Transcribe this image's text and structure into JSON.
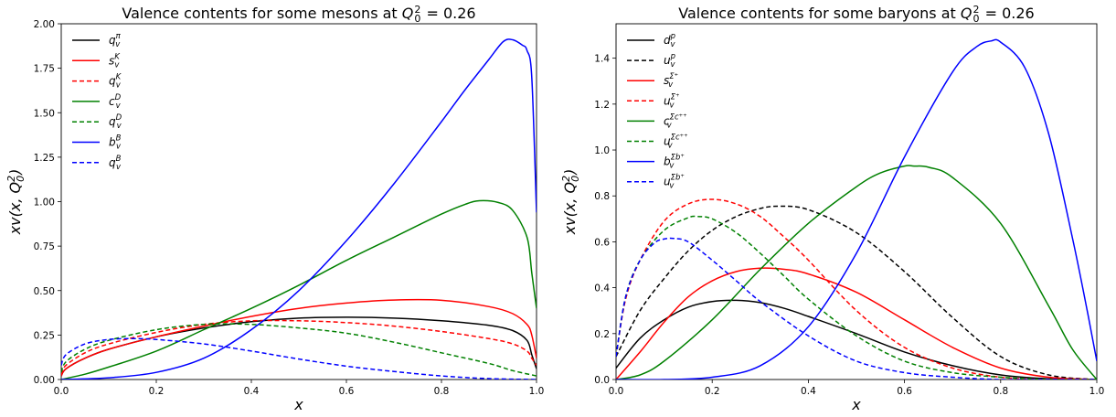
{
  "chart_data": [
    {
      "type": "line",
      "title_prefix": "Valence contents for some mesons at ",
      "title_sym": "Q",
      "title_sub": "0",
      "title_sup": "2",
      "title_suffix": " = 0.26",
      "xlabel": "x",
      "ylabel": {
        "base": "xv(x, Q",
        "sub": "0",
        "sup": "2",
        "close": ")"
      },
      "xlim": [
        0.0,
        1.0
      ],
      "ylim": [
        0.0,
        2.0
      ],
      "xticks": [
        0.0,
        0.2,
        0.4,
        0.6,
        0.8,
        1.0
      ],
      "xtick_labels": [
        "0.0",
        "0.2",
        "0.4",
        "0.6",
        "0.8",
        "1.0"
      ],
      "yticks": [
        0,
        0.25,
        0.5,
        0.75,
        1.0,
        1.25,
        1.5,
        1.75,
        2.0
      ],
      "ytick_labels": [
        "0.00",
        "0.25",
        "0.50",
        "0.75",
        "1.00",
        "1.25",
        "1.50",
        "1.75",
        "2.00"
      ],
      "legend_position": "top-left",
      "series": [
        {
          "name": "q_v^π",
          "base": "q",
          "sup": "π",
          "color": "#000000",
          "dash": "solid",
          "x": [
            0.0,
            0.01,
            0.05,
            0.1,
            0.2,
            0.3,
            0.4,
            0.5,
            0.6,
            0.7,
            0.8,
            0.9,
            0.95,
            0.98,
            0.99,
            1.0
          ],
          "y": [
            0.02,
            0.06,
            0.12,
            0.17,
            0.24,
            0.29,
            0.325,
            0.345,
            0.35,
            0.345,
            0.33,
            0.305,
            0.275,
            0.22,
            0.14,
            0.06
          ]
        },
        {
          "name": "s_v^K",
          "base": "s",
          "sup": "K",
          "color": "#ff0000",
          "dash": "solid",
          "x": [
            0.0,
            0.01,
            0.05,
            0.1,
            0.2,
            0.3,
            0.4,
            0.5,
            0.6,
            0.7,
            0.8,
            0.9,
            0.95,
            0.98,
            0.99,
            1.0
          ],
          "y": [
            0.02,
            0.06,
            0.12,
            0.17,
            0.24,
            0.3,
            0.355,
            0.4,
            0.43,
            0.447,
            0.445,
            0.41,
            0.37,
            0.31,
            0.25,
            0.12
          ]
        },
        {
          "name": "q_v^K",
          "base": "q",
          "sup": "K",
          "color": "#ff0000",
          "dash": "dashed",
          "x": [
            0.0,
            0.01,
            0.05,
            0.1,
            0.2,
            0.3,
            0.4,
            0.5,
            0.6,
            0.7,
            0.8,
            0.9,
            0.95,
            0.98,
            0.99,
            1.0
          ],
          "y": [
            0.03,
            0.08,
            0.15,
            0.2,
            0.265,
            0.31,
            0.33,
            0.33,
            0.32,
            0.3,
            0.27,
            0.23,
            0.2,
            0.16,
            0.12,
            0.08
          ]
        },
        {
          "name": "c_v^D",
          "base": "c",
          "sup": "D",
          "color": "#008000",
          "dash": "solid",
          "x": [
            0.0,
            0.05,
            0.1,
            0.2,
            0.3,
            0.4,
            0.5,
            0.6,
            0.7,
            0.8,
            0.85,
            0.88,
            0.92,
            0.95,
            0.98,
            0.99,
            1.0
          ],
          "y": [
            0.0,
            0.03,
            0.07,
            0.16,
            0.28,
            0.4,
            0.53,
            0.67,
            0.8,
            0.93,
            0.985,
            1.005,
            0.995,
            0.95,
            0.8,
            0.6,
            0.4
          ]
        },
        {
          "name": "q_v^D",
          "base": "q",
          "sup": "D",
          "color": "#008000",
          "dash": "dashed",
          "x": [
            0.0,
            0.01,
            0.05,
            0.1,
            0.2,
            0.3,
            0.4,
            0.5,
            0.6,
            0.7,
            0.8,
            0.9,
            0.95,
            1.0
          ],
          "y": [
            0.04,
            0.1,
            0.17,
            0.22,
            0.28,
            0.31,
            0.31,
            0.29,
            0.26,
            0.21,
            0.15,
            0.09,
            0.05,
            0.02
          ]
        },
        {
          "name": "b_v^B",
          "base": "b",
          "sup": "B",
          "color": "#0000ff",
          "dash": "solid",
          "x": [
            0.0,
            0.1,
            0.2,
            0.3,
            0.4,
            0.5,
            0.6,
            0.7,
            0.8,
            0.85,
            0.9,
            0.93,
            0.95,
            0.97,
            0.98,
            0.99,
            1.0
          ],
          "y": [
            0.0,
            0.01,
            0.04,
            0.12,
            0.28,
            0.5,
            0.78,
            1.1,
            1.45,
            1.63,
            1.8,
            1.9,
            1.91,
            1.88,
            1.85,
            1.7,
            0.94
          ]
        },
        {
          "name": "q_v^B",
          "base": "q",
          "sup": "B",
          "color": "#0000ff",
          "dash": "dashed",
          "x": [
            0.0,
            0.01,
            0.05,
            0.1,
            0.15,
            0.2,
            0.3,
            0.4,
            0.5,
            0.6,
            0.7,
            0.8,
            0.9,
            1.0
          ],
          "y": [
            0.08,
            0.14,
            0.2,
            0.225,
            0.23,
            0.225,
            0.2,
            0.16,
            0.115,
            0.075,
            0.045,
            0.02,
            0.005,
            0.0
          ]
        }
      ]
    },
    {
      "type": "line",
      "title_prefix": "Valence contents for some baryons at ",
      "title_sym": "Q",
      "title_sub": "0",
      "title_sup": "2",
      "title_suffix": " = 0.26",
      "xlabel": "x",
      "ylabel": {
        "base": "xv(x, Q",
        "sub": "0",
        "sup": "2",
        "close": ")"
      },
      "xlim": [
        0.0,
        1.0
      ],
      "ylim": [
        0.0,
        1.55
      ],
      "xticks": [
        0.0,
        0.2,
        0.4,
        0.6,
        0.8,
        1.0
      ],
      "xtick_labels": [
        "0.0",
        "0.2",
        "0.4",
        "0.6",
        "0.8",
        "1.0"
      ],
      "yticks": [
        0.0,
        0.2,
        0.4,
        0.6,
        0.8,
        1.0,
        1.2,
        1.4
      ],
      "ytick_labels": [
        "0.0",
        "0.2",
        "0.4",
        "0.6",
        "0.8",
        "1.0",
        "1.2",
        "1.4"
      ],
      "legend_position": "top-left",
      "series": [
        {
          "name": "d_v^p",
          "base": "d",
          "sup": "p",
          "color": "#000000",
          "dash": "solid",
          "x": [
            0.0,
            0.05,
            0.1,
            0.15,
            0.2,
            0.25,
            0.3,
            0.35,
            0.4,
            0.5,
            0.6,
            0.7,
            0.8,
            0.9,
            1.0
          ],
          "y": [
            0.05,
            0.18,
            0.26,
            0.315,
            0.34,
            0.345,
            0.335,
            0.31,
            0.275,
            0.2,
            0.12,
            0.06,
            0.02,
            0.003,
            0.0
          ]
        },
        {
          "name": "u_v^p",
          "base": "u",
          "sup": "p",
          "color": "#000000",
          "dash": "dashed",
          "x": [
            0.0,
            0.05,
            0.1,
            0.15,
            0.2,
            0.25,
            0.3,
            0.34,
            0.4,
            0.5,
            0.6,
            0.7,
            0.8,
            0.9,
            1.0
          ],
          "y": [
            0.1,
            0.3,
            0.44,
            0.56,
            0.65,
            0.71,
            0.745,
            0.755,
            0.74,
            0.64,
            0.47,
            0.27,
            0.1,
            0.02,
            0.0
          ]
        },
        {
          "name": "s_v^{Σ+}",
          "base": "s",
          "sup": "Σ⁺",
          "color": "#ff0000",
          "dash": "solid",
          "x": [
            0.0,
            0.05,
            0.1,
            0.15,
            0.2,
            0.25,
            0.3,
            0.35,
            0.4,
            0.5,
            0.6,
            0.7,
            0.8,
            0.9,
            1.0
          ],
          "y": [
            0.0,
            0.12,
            0.25,
            0.36,
            0.43,
            0.47,
            0.485,
            0.48,
            0.46,
            0.38,
            0.26,
            0.14,
            0.05,
            0.01,
            0.0
          ]
        },
        {
          "name": "u_v^{Σ+}",
          "base": "u",
          "sup": "Σ⁺",
          "color": "#ff0000",
          "dash": "dashed",
          "x": [
            0.0,
            0.02,
            0.05,
            0.1,
            0.15,
            0.2,
            0.25,
            0.3,
            0.35,
            0.4,
            0.5,
            0.6,
            0.7,
            0.8,
            0.9,
            1.0
          ],
          "y": [
            0.1,
            0.35,
            0.52,
            0.69,
            0.765,
            0.785,
            0.765,
            0.71,
            0.62,
            0.52,
            0.3,
            0.14,
            0.05,
            0.01,
            0.0,
            0.0
          ]
        },
        {
          "name": "c_v^{Σc++}",
          "base": "c",
          "sup": "Σc⁺⁺",
          "color": "#008000",
          "dash": "solid",
          "x": [
            0.0,
            0.05,
            0.1,
            0.2,
            0.3,
            0.4,
            0.5,
            0.55,
            0.6,
            0.62,
            0.65,
            0.7,
            0.8,
            0.9,
            0.95,
            1.0
          ],
          "y": [
            0.0,
            0.02,
            0.08,
            0.26,
            0.48,
            0.68,
            0.84,
            0.9,
            0.93,
            0.93,
            0.925,
            0.88,
            0.68,
            0.32,
            0.13,
            0.0
          ]
        },
        {
          "name": "u_v^{Σc++}",
          "base": "u",
          "sup": "Σc⁺⁺",
          "color": "#008000",
          "dash": "dashed",
          "x": [
            0.0,
            0.02,
            0.05,
            0.1,
            0.15,
            0.17,
            0.2,
            0.25,
            0.3,
            0.35,
            0.4,
            0.5,
            0.6,
            0.7,
            0.8,
            0.9,
            1.0
          ],
          "y": [
            0.1,
            0.36,
            0.52,
            0.65,
            0.705,
            0.71,
            0.7,
            0.64,
            0.55,
            0.45,
            0.35,
            0.19,
            0.08,
            0.03,
            0.01,
            0.0,
            0.0
          ]
        },
        {
          "name": "b_v^{Σb+}",
          "base": "b",
          "sup": "Σb⁺",
          "color": "#0000ff",
          "dash": "solid",
          "x": [
            0.0,
            0.1,
            0.2,
            0.3,
            0.4,
            0.5,
            0.6,
            0.7,
            0.75,
            0.78,
            0.8,
            0.85,
            0.9,
            0.95,
            0.98,
            1.0
          ],
          "y": [
            0.0,
            0.0,
            0.01,
            0.06,
            0.23,
            0.55,
            0.97,
            1.34,
            1.45,
            1.475,
            1.47,
            1.36,
            1.07,
            0.61,
            0.3,
            0.08
          ]
        },
        {
          "name": "u_v^{Σb+}",
          "base": "u",
          "sup": "Σb⁺",
          "color": "#0000ff",
          "dash": "dashed",
          "x": [
            0.0,
            0.02,
            0.05,
            0.08,
            0.1,
            0.12,
            0.15,
            0.2,
            0.25,
            0.3,
            0.4,
            0.5,
            0.6,
            0.7,
            0.8,
            0.9,
            1.0
          ],
          "y": [
            0.1,
            0.36,
            0.52,
            0.595,
            0.612,
            0.615,
            0.6,
            0.52,
            0.43,
            0.34,
            0.19,
            0.08,
            0.03,
            0.01,
            0.0,
            0.0,
            0.0
          ]
        }
      ]
    }
  ]
}
